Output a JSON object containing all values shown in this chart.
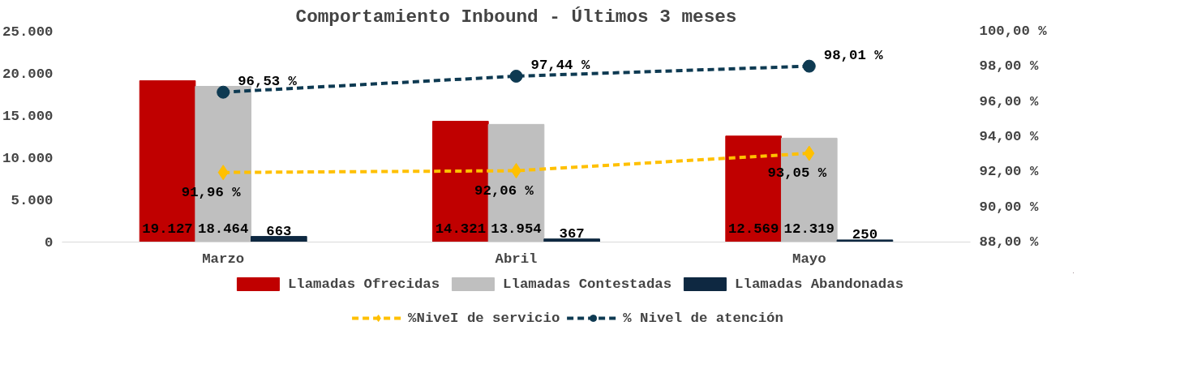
{
  "chart_data": {
    "type": "bar",
    "title": "Comportamiento Inbound - Últimos 3 meses",
    "categories": [
      "Marzo",
      "Abril",
      "Mayo"
    ],
    "series": [
      {
        "name": "Llamadas Ofrecidas",
        "color": "#c00000",
        "values": [
          19127,
          14321,
          12569
        ],
        "value_labels": [
          "19.127",
          "14.321",
          "12.569"
        ]
      },
      {
        "name": "Llamadas Contestadas",
        "color": "#bfbfbf",
        "values": [
          18464,
          13954,
          12319
        ],
        "value_labels": [
          "18.464",
          "13.954",
          "12.319"
        ]
      },
      {
        "name": "Llamadas Abandonadas",
        "color": "#0e2841",
        "values": [
          663,
          367,
          250
        ],
        "value_labels": [
          "663",
          "367",
          "250"
        ]
      },
      {
        "name": "%NiveI de servicio",
        "type": "line",
        "axis": "y2",
        "color": "#ffc000",
        "marker": "diamond",
        "line_style": "dashed",
        "values": [
          91.96,
          92.06,
          93.05
        ],
        "value_labels": [
          "91,96 %",
          "92,06 %",
          "93,05 %"
        ]
      },
      {
        "name": "% Nivel de atención",
        "type": "line",
        "axis": "y2",
        "color": "#0e3a52",
        "marker": "circle",
        "line_style": "dashed",
        "values": [
          96.53,
          97.44,
          98.01
        ],
        "value_labels": [
          "96,53 %",
          "97,44 %",
          "98,01 %"
        ]
      }
    ],
    "ylim": [
      0,
      25000
    ],
    "yticks": [
      {
        "value": 0,
        "label": "0"
      },
      {
        "value": 5000,
        "label": "5.000"
      },
      {
        "value": 10000,
        "label": "10.000"
      },
      {
        "value": 15000,
        "label": "15.000"
      },
      {
        "value": 20000,
        "label": "20.000"
      },
      {
        "value": 25000,
        "label": "25.000"
      }
    ],
    "y2lim": [
      88,
      100
    ],
    "y2ticks": [
      {
        "value": 88,
        "label": "88,00 %"
      },
      {
        "value": 90,
        "label": "90,00 %"
      },
      {
        "value": 92,
        "label": "92,00 %"
      },
      {
        "value": 94,
        "label": "94,00 %"
      },
      {
        "value": 96,
        "label": "96,00 %"
      },
      {
        "value": 98,
        "label": "98,00 %"
      },
      {
        "value": 100,
        "label": "100,00 %"
      }
    ],
    "grid": false,
    "legend": "bottom"
  }
}
